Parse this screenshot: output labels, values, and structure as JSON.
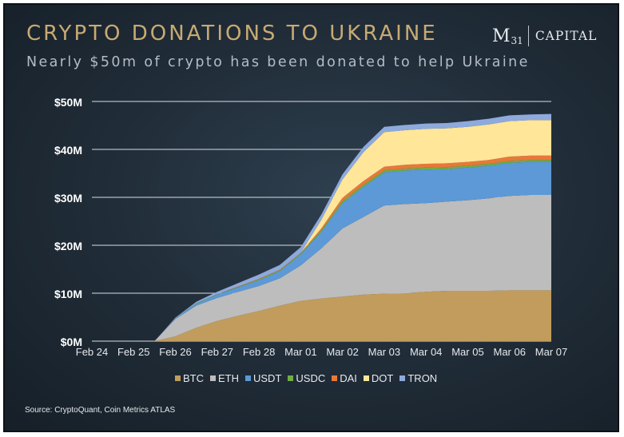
{
  "title": "CRYPTO DONATIONS TO UKRAINE",
  "subtitle": "Nearly $50m of crypto has been donated to help Ukraine",
  "logo": {
    "m": "M",
    "sub": "31",
    "capital": "CAPITAL"
  },
  "source": "Source: CryptoQuant, Coin Metrics ATLAS",
  "colors": {
    "background": "#1f2b36",
    "title": "#c8aa73",
    "text": "#e8eaec"
  },
  "chart_data": {
    "type": "area",
    "stacked": true,
    "title": "",
    "xlabel": "",
    "ylabel": "",
    "categories": [
      "Feb 24",
      "Feb 25",
      "Feb 26",
      "Feb 27",
      "Feb 28",
      "Mar 01",
      "Mar 02",
      "Mar 03",
      "Mar 04",
      "Mar 05",
      "Mar 06",
      "Mar 07"
    ],
    "x": [
      0,
      1,
      1.5,
      2,
      2.5,
      3,
      3.5,
      4,
      4.5,
      5,
      5.5,
      6,
      6.5,
      7,
      7.5,
      8,
      8.5,
      9,
      9.5,
      10,
      10.5,
      11
    ],
    "ylim": [
      0,
      50
    ],
    "yticks": [
      "$0M",
      "$10M",
      "$20M",
      "$30M",
      "$40M",
      "$50M"
    ],
    "ytick_values": [
      0,
      10,
      20,
      30,
      40,
      50
    ],
    "grid": true,
    "legend_position": "bottom",
    "series": [
      {
        "name": "BTC",
        "color": "#c19c5c",
        "values": [
          0,
          0,
          0,
          1,
          2.8,
          4.2,
          5.3,
          6.3,
          7.4,
          8.4,
          8.9,
          9.3,
          9.7,
          9.9,
          10.0,
          10.3,
          10.5,
          10.5,
          10.5,
          10.6,
          10.6,
          10.6
        ]
      },
      {
        "name": "ETH",
        "color": "#bdbdbd",
        "values": [
          0,
          0,
          0,
          3.6,
          4.6,
          4.8,
          5.0,
          5.2,
          5.7,
          7.4,
          10.5,
          14.2,
          16.2,
          18.4,
          18.6,
          18.5,
          18.6,
          18.9,
          19.3,
          19.7,
          19.9,
          19.9
        ]
      },
      {
        "name": "USDT",
        "color": "#5c99d6",
        "values": [
          0,
          0,
          0,
          0.2,
          0.4,
          0.7,
          0.9,
          1.2,
          1.5,
          2.3,
          3.5,
          5.3,
          6.3,
          6.9,
          7.0,
          7.0,
          6.8,
          6.8,
          6.8,
          6.9,
          6.9,
          6.9
        ]
      },
      {
        "name": "USDC",
        "color": "#6fae45",
        "values": [
          0,
          0,
          0,
          0,
          0.1,
          0.1,
          0.1,
          0.2,
          0.2,
          0.2,
          0.3,
          0.4,
          0.4,
          0.4,
          0.4,
          0.4,
          0.4,
          0.4,
          0.4,
          0.4,
          0.4,
          0.4
        ]
      },
      {
        "name": "DAI",
        "color": "#e8783a",
        "values": [
          0,
          0,
          0,
          0,
          0,
          0,
          0.1,
          0.1,
          0.1,
          0.1,
          0.4,
          0.7,
          0.8,
          0.8,
          0.8,
          0.8,
          0.8,
          0.8,
          0.8,
          0.9,
          0.9,
          0.9
        ]
      },
      {
        "name": "DOT",
        "color": "#ffe699",
        "values": [
          0,
          0,
          0,
          0,
          0,
          0,
          0,
          0,
          0,
          0,
          1.8,
          3.8,
          6.0,
          7.2,
          7.2,
          7.3,
          7.3,
          7.3,
          7.4,
          7.4,
          7.4,
          7.4
        ]
      },
      {
        "name": "TRON",
        "color": "#8ea9db",
        "values": [
          0,
          0,
          0,
          0.1,
          0.3,
          0.5,
          0.7,
          0.9,
          1.0,
          1.2,
          1.1,
          1.1,
          1.1,
          1.1,
          1.1,
          1.1,
          1.1,
          1.2,
          1.2,
          1.2,
          1.2,
          1.3
        ]
      }
    ]
  }
}
